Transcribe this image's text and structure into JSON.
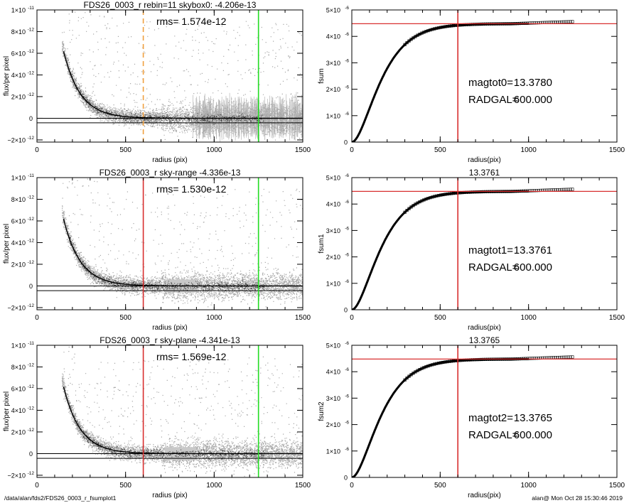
{
  "footer": {
    "path": "/data/alan/fds2/FDS26_0003_r_fsumplot1",
    "user_time": "alan@  Mon Oct 28 15:30:46 2019"
  },
  "colors": {
    "orange_line": "#f0a040",
    "red_line": "#d83030",
    "green_line": "#22dd22",
    "points_gray": "#a8a8a8",
    "points_dark": "#303030",
    "curve": "#000000"
  },
  "chart_data": [
    {
      "type": "scatter",
      "id": "left1",
      "title": "FDS26_0003_r rebin=11    skybox0: -4.206e-13",
      "annotation": "rms= 1.574e-12",
      "xlabel": "radius (pix)",
      "ylabel": "flux/per pixel",
      "xlim": [
        0,
        1500
      ],
      "ylim": [
        -2.2e-12,
        1e-11
      ],
      "xticks": [
        0,
        500,
        1000,
        1500
      ],
      "xticklabels": [
        "0",
        "500",
        "1000",
        "1500"
      ],
      "yticks": [
        -2e-12,
        0,
        2e-12,
        4e-12,
        6e-12,
        8e-12,
        1e-11
      ],
      "yticklabels": [
        "−2×10",
        "0",
        "2×10",
        "4×10",
        "6×10",
        "8×10",
        "1×10"
      ],
      "yexps": [
        "-12",
        "",
        "-12",
        "-12",
        "-12",
        "-12",
        "-11"
      ],
      "hlines": [
        0,
        -4.206e-13
      ],
      "vlines": [
        {
          "x": 600,
          "color": "#f0a040",
          "dashed": true
        },
        {
          "x": 1250,
          "color": "#22dd22",
          "dashed": false
        }
      ],
      "profile": {
        "amplitude": 3e-11,
        "scale": 95,
        "offset": 0
      },
      "scatter_style": "errorbars"
    },
    {
      "type": "line",
      "id": "right1",
      "title": "",
      "annotation_lines": [
        {
          "label": "magtot0=",
          "value": "13.3780"
        },
        {
          "label": "RADGAL=",
          "value": "600.000"
        }
      ],
      "xlabel": "radius(pix)",
      "ylabel": "fsum",
      "xlim": [
        0,
        1500
      ],
      "ylim": [
        0,
        5e-06
      ],
      "xticks": [
        0,
        500,
        1000,
        1500
      ],
      "xticklabels": [
        "0",
        "500",
        "1000",
        "1500"
      ],
      "yticks": [
        0,
        1e-06,
        2e-06,
        3e-06,
        4e-06,
        5e-06
      ],
      "yticklabels": [
        "0",
        "1×10",
        "2×10",
        "3×10",
        "4×10",
        "5×10"
      ],
      "yexps": [
        "",
        "-6",
        "-6",
        "-6",
        "-6",
        "-6"
      ],
      "hline": 4.48e-06,
      "vline": 600,
      "asymptote": 4.48e-06,
      "scale": 95,
      "marker_end": 1250
    },
    {
      "type": "scatter",
      "id": "left2",
      "title": "FDS26_0003_r sky-range -4.336e-13",
      "annotation": "rms= 1.530e-12",
      "xlabel": "radius (pix)",
      "ylabel": "flux/per pixel",
      "xlim": [
        0,
        1500
      ],
      "ylim": [
        -2.2e-12,
        1e-11
      ],
      "xticks": [
        0,
        500,
        1000,
        1500
      ],
      "xticklabels": [
        "0",
        "500",
        "1000",
        "1500"
      ],
      "yticks": [
        -2e-12,
        0,
        2e-12,
        4e-12,
        6e-12,
        8e-12,
        1e-11
      ],
      "yticklabels": [
        "−2×10",
        "0",
        "2×10",
        "4×10",
        "6×10",
        "8×10",
        "1×10"
      ],
      "yexps": [
        "-12",
        "",
        "-12",
        "-12",
        "-12",
        "-12",
        "-11"
      ],
      "hlines": [
        0,
        -4.336e-13
      ],
      "vlines": [
        {
          "x": 600,
          "color": "#d83030",
          "dashed": false
        },
        {
          "x": 1250,
          "color": "#22dd22",
          "dashed": false
        }
      ],
      "profile": {
        "amplitude": 3e-11,
        "scale": 95,
        "offset": 0
      },
      "scatter_style": "band"
    },
    {
      "type": "line",
      "id": "right2",
      "title": "13.3761",
      "annotation_lines": [
        {
          "label": "magtot1=",
          "value": "13.3761"
        },
        {
          "label": "RADGAL=",
          "value": "600.000"
        }
      ],
      "xlabel": "radius(pix)",
      "ylabel": "fsum1",
      "xlim": [
        0,
        1500
      ],
      "ylim": [
        0,
        5e-06
      ],
      "xticks": [
        0,
        500,
        1000,
        1500
      ],
      "xticklabels": [
        "0",
        "500",
        "1000",
        "1500"
      ],
      "yticks": [
        0,
        1e-06,
        2e-06,
        3e-06,
        4e-06,
        5e-06
      ],
      "yticklabels": [
        "0",
        "1×10",
        "2×10",
        "3×10",
        "4×10",
        "5×10"
      ],
      "yexps": [
        "",
        "-6",
        "-6",
        "-6",
        "-6",
        "-6"
      ],
      "hline": 4.48e-06,
      "vline": 600,
      "asymptote": 4.48e-06,
      "scale": 95,
      "marker_end": 1250
    },
    {
      "type": "scatter",
      "id": "left3",
      "title": "FDS26_0003_r sky-plane -4.341e-13",
      "annotation": "rms= 1.569e-12",
      "xlabel": "radius (pix)",
      "ylabel": "flux/per pixel",
      "xlim": [
        0,
        1500
      ],
      "ylim": [
        -2.2e-12,
        1e-11
      ],
      "xticks": [
        0,
        500,
        1000,
        1500
      ],
      "xticklabels": [
        "0",
        "500",
        "1000",
        "1500"
      ],
      "yticks": [
        -2e-12,
        0,
        2e-12,
        4e-12,
        6e-12,
        8e-12,
        1e-11
      ],
      "yticklabels": [
        "−2×10",
        "0",
        "2×10",
        "4×10",
        "6×10",
        "8×10",
        "1×10"
      ],
      "yexps": [
        "-12",
        "",
        "-12",
        "-12",
        "-12",
        "-12",
        "-11"
      ],
      "hlines": [
        0,
        -4.341e-13
      ],
      "vlines": [
        {
          "x": 600,
          "color": "#d83030",
          "dashed": false
        },
        {
          "x": 1250,
          "color": "#22dd22",
          "dashed": false
        }
      ],
      "profile": {
        "amplitude": 3e-11,
        "scale": 95,
        "offset": 0
      },
      "scatter_style": "band"
    },
    {
      "type": "line",
      "id": "right3",
      "title": "13.3765",
      "annotation_lines": [
        {
          "label": "magtot2=",
          "value": "13.3765"
        },
        {
          "label": "RADGAL=",
          "value": "600.000"
        }
      ],
      "xlabel": "radius(pix)",
      "ylabel": "fsum2",
      "xlim": [
        0,
        1500
      ],
      "ylim": [
        0,
        5e-06
      ],
      "xticks": [
        0,
        500,
        1000,
        1500
      ],
      "xticklabels": [
        "0",
        "500",
        "1000",
        "1500"
      ],
      "yticks": [
        0,
        1e-06,
        2e-06,
        3e-06,
        4e-06,
        5e-06
      ],
      "yticklabels": [
        "0",
        "1×10",
        "2×10",
        "3×10",
        "4×10",
        "5×10"
      ],
      "yexps": [
        "",
        "-6",
        "-6",
        "-6",
        "-6",
        "-6"
      ],
      "hline": 4.48e-06,
      "vline": 600,
      "asymptote": 4.48e-06,
      "scale": 95,
      "marker_end": 1250
    }
  ]
}
